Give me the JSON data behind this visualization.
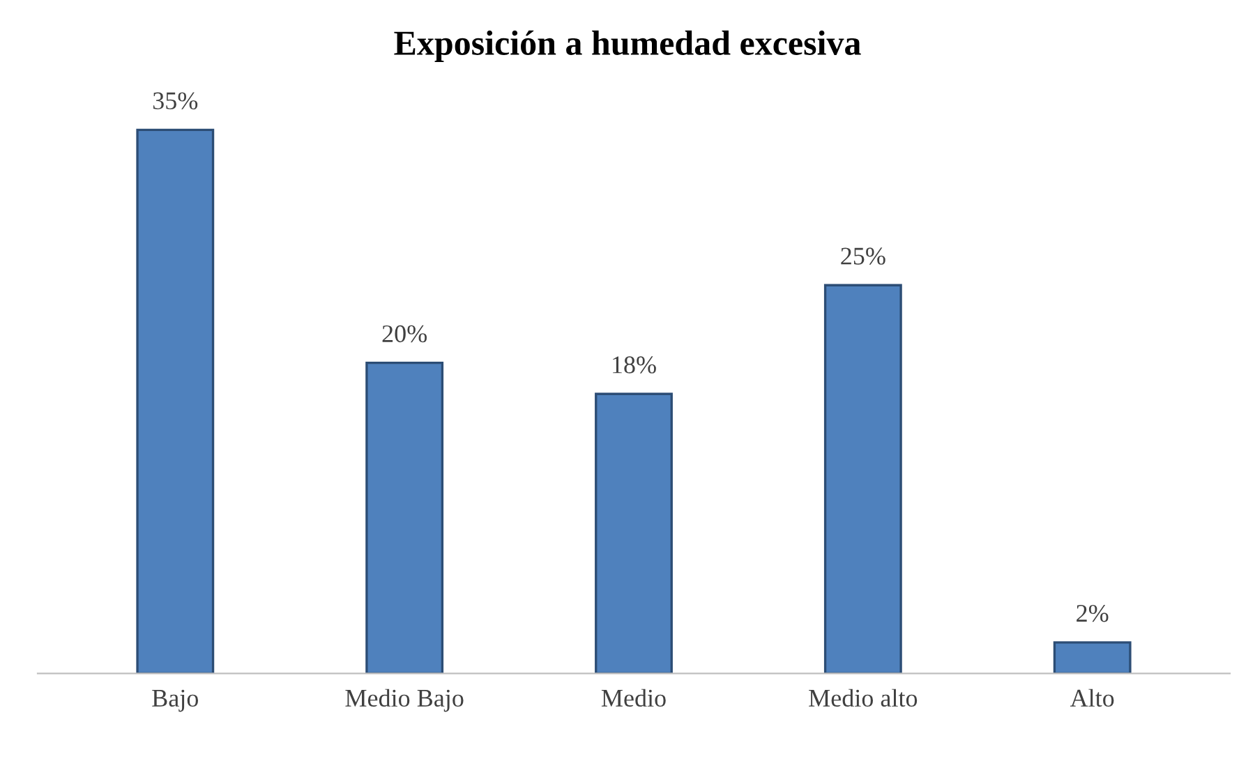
{
  "chart_data": {
    "type": "bar",
    "title": "Exposición a humedad excesiva",
    "categories": [
      "Bajo",
      "Medio Bajo",
      "Medio",
      "Medio alto",
      "Alto"
    ],
    "values": [
      35,
      20,
      18,
      25,
      2
    ],
    "value_labels": [
      "35%",
      "20%",
      "18%",
      "25%",
      "2%"
    ],
    "color": "#4f81bd",
    "grid": false,
    "legend": false
  }
}
